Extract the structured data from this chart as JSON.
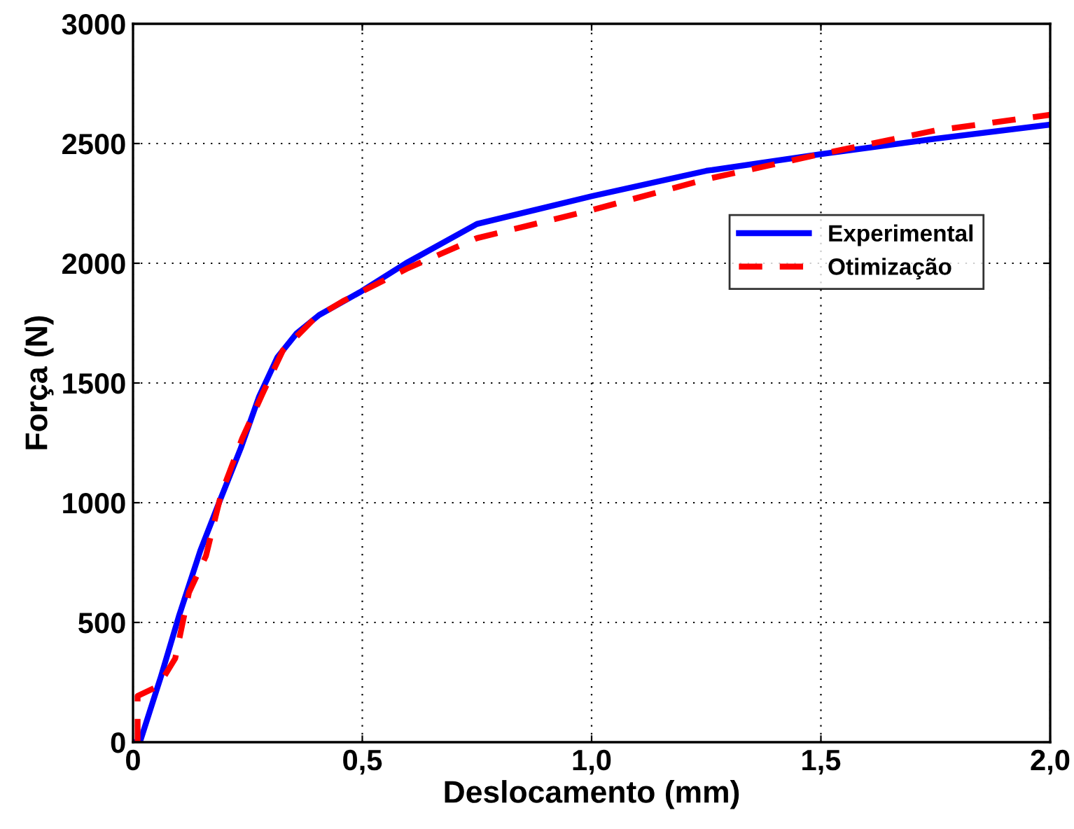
{
  "chart_data": {
    "type": "line",
    "xlabel": "Deslocamento (mm)",
    "ylabel": "Força (N)",
    "xlim": [
      0,
      2
    ],
    "ylim": [
      0,
      3000
    ],
    "xticks": [
      0,
      {
        "value": 0.5,
        "label": "0,5"
      },
      {
        "value": 1.0,
        "label": "1,0"
      },
      {
        "value": 1.5,
        "label": "1,5"
      },
      {
        "value": 2.0,
        "label": "2,0"
      }
    ],
    "yticks": [
      0,
      500,
      1000,
      1500,
      2000,
      2500,
      3000
    ],
    "grid": true,
    "legend": "top right",
    "series": [
      {
        "name": "Experimental",
        "color": "#0000ff",
        "line_style": "solid",
        "x": [
          0,
          0.015,
          0.061,
          0.1,
          0.147,
          0.19,
          0.235,
          0.275,
          0.315,
          0.357,
          0.406,
          0.498,
          0.595,
          0.75,
          1.0,
          1.25,
          1.5,
          1.75,
          2.0
        ],
        "values": [
          0,
          0,
          275,
          526,
          801,
          1012,
          1228,
          1444,
          1608,
          1708,
          1784,
          1883,
          2000,
          2164,
          2280,
          2386,
          2456,
          2520,
          2579
        ]
      },
      {
        "name": "Otimização",
        "color": "#ff0000",
        "line_style": "dashed",
        "x": [
          0.01,
          0.01,
          0.055,
          0.092,
          0.122,
          0.159,
          0.192,
          0.238,
          0.284,
          0.327,
          0.397,
          0.458,
          0.6,
          0.75,
          1.0,
          1.25,
          1.5,
          1.75,
          2.0
        ],
        "values": [
          0,
          193,
          234,
          350,
          625,
          778,
          1035,
          1268,
          1462,
          1637,
          1772,
          1842,
          1980,
          2105,
          2222,
          2351,
          2456,
          2555,
          2620
        ]
      }
    ]
  }
}
